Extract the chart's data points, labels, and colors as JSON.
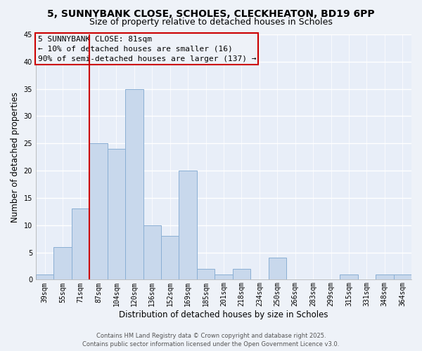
{
  "title": "5, SUNNYBANK CLOSE, SCHOLES, CLECKHEATON, BD19 6PP",
  "subtitle": "Size of property relative to detached houses in Scholes",
  "xlabel": "Distribution of detached houses by size in Scholes",
  "ylabel": "Number of detached properties",
  "bar_labels": [
    "39sqm",
    "55sqm",
    "71sqm",
    "87sqm",
    "104sqm",
    "120sqm",
    "136sqm",
    "152sqm",
    "169sqm",
    "185sqm",
    "201sqm",
    "218sqm",
    "234sqm",
    "250sqm",
    "266sqm",
    "283sqm",
    "299sqm",
    "315sqm",
    "331sqm",
    "348sqm",
    "364sqm"
  ],
  "bar_values": [
    1,
    6,
    13,
    25,
    24,
    35,
    10,
    8,
    20,
    2,
    1,
    2,
    0,
    4,
    0,
    0,
    0,
    1,
    0,
    1,
    1
  ],
  "bar_color": "#c8d8ec",
  "bar_edge_color": "#8aafd4",
  "ylim": [
    0,
    45
  ],
  "yticks": [
    0,
    5,
    10,
    15,
    20,
    25,
    30,
    35,
    40,
    45
  ],
  "vline_color": "#cc0000",
  "annotation_line1": "5 SUNNYBANK CLOSE: 81sqm",
  "annotation_line2": "← 10% of detached houses are smaller (16)",
  "annotation_line3": "90% of semi-detached houses are larger (137) →",
  "footer_line1": "Contains HM Land Registry data © Crown copyright and database right 2025.",
  "footer_line2": "Contains public sector information licensed under the Open Government Licence v3.0.",
  "bg_color": "#eef2f8",
  "plot_bg_color": "#e8eef8",
  "grid_color": "#ffffff",
  "title_fontsize": 10,
  "subtitle_fontsize": 9,
  "axis_label_fontsize": 8.5,
  "tick_fontsize": 7,
  "footer_fontsize": 6,
  "ann_fontsize": 8
}
